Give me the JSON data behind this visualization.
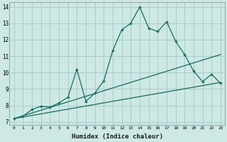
{
  "xlabel": "Humidex (Indice chaleur)",
  "background_color": "#cde8e5",
  "grid_color": "#a8cdc9",
  "line_color": "#1a6b5a",
  "xlim": [
    -0.5,
    23.5
  ],
  "ylim": [
    6.8,
    14.3
  ],
  "xticks": [
    0,
    1,
    2,
    3,
    4,
    5,
    6,
    7,
    8,
    9,
    10,
    11,
    12,
    13,
    14,
    15,
    16,
    17,
    18,
    19,
    20,
    21,
    22,
    23
  ],
  "yticks": [
    7,
    8,
    9,
    10,
    11,
    12,
    13,
    14
  ],
  "main_x": [
    0,
    1,
    2,
    3,
    4,
    5,
    6,
    7,
    8,
    9,
    10,
    11,
    12,
    13,
    14,
    15,
    16,
    17,
    18,
    19,
    20,
    21,
    22,
    23
  ],
  "main_y": [
    7.2,
    7.35,
    7.75,
    7.95,
    7.9,
    8.15,
    8.5,
    10.2,
    8.25,
    8.75,
    9.5,
    11.35,
    12.6,
    13.0,
    14.0,
    12.7,
    12.5,
    13.1,
    11.9,
    11.1,
    10.1,
    9.45,
    9.9,
    9.35
  ],
  "line2_x": [
    0,
    23
  ],
  "line2_y": [
    7.2,
    11.1
  ],
  "line3_x": [
    0,
    23
  ],
  "line3_y": [
    7.2,
    9.4
  ]
}
